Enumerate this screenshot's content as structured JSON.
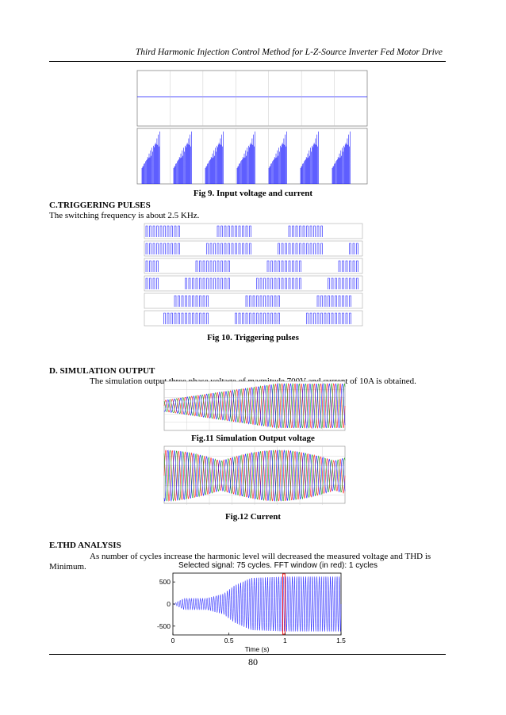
{
  "header": {
    "running_title": "Third Harmonic Injection Control Method for L-Z-Source Inverter Fed Motor Drive"
  },
  "figures": {
    "fig9": {
      "caption": "Fig 9. Input voltage and current"
    },
    "fig10": {
      "caption": "Fig 10. Triggering pulses"
    },
    "fig11": {
      "caption": "Fig.11 Simulation Output voltage"
    },
    "fig12": {
      "caption": "Fig.12 Current"
    }
  },
  "sections": {
    "c": {
      "heading": "C.TRIGGERING PULSES",
      "text": "The switching frequency is about 2.5 KHz."
    },
    "d": {
      "heading": "D. SIMULATION OUTPUT",
      "text": "The simulation output three phase voltage of magnitude 700V and current of 10A is obtained."
    },
    "e": {
      "heading": "E.THD ANALYSIS",
      "text_line1": "As number of cycles increase the harmonic level will decreased the measured voltage and THD is",
      "text_line2": "Minimum."
    }
  },
  "colors": {
    "blue": "#1a1aff",
    "red": "#ff2020",
    "magenta": "#d020d0",
    "green": "#20a020",
    "cyan": "#20b0c0",
    "orange": "#e08020"
  },
  "chart_data": [
    {
      "type": "line",
      "title": "Selected signal: 75 cycles. FFT window (in red): 1 cycles",
      "xlabel": "Time (s)",
      "ylabel": "",
      "xlim": [
        0,
        1.5
      ],
      "ylim": [
        -700,
        700
      ],
      "x_ticks": [
        "0",
        "0.5",
        "1",
        "1.5"
      ],
      "y_ticks": [
        "500",
        "0",
        "-500"
      ],
      "series": [
        {
          "points": [
            [
              0,
              0
            ],
            [
              0.1,
              130
            ],
            [
              0.3,
              130
            ],
            [
              0.45,
              230
            ],
            [
              0.55,
              420
            ],
            [
              0.7,
              590
            ],
            [
              1.0,
              620
            ],
            [
              1.5,
              620
            ]
          ],
          "note_cycles": 75
        }
      ],
      "fft_window": [
        0.98,
        1.0
      ]
    }
  ]
}
